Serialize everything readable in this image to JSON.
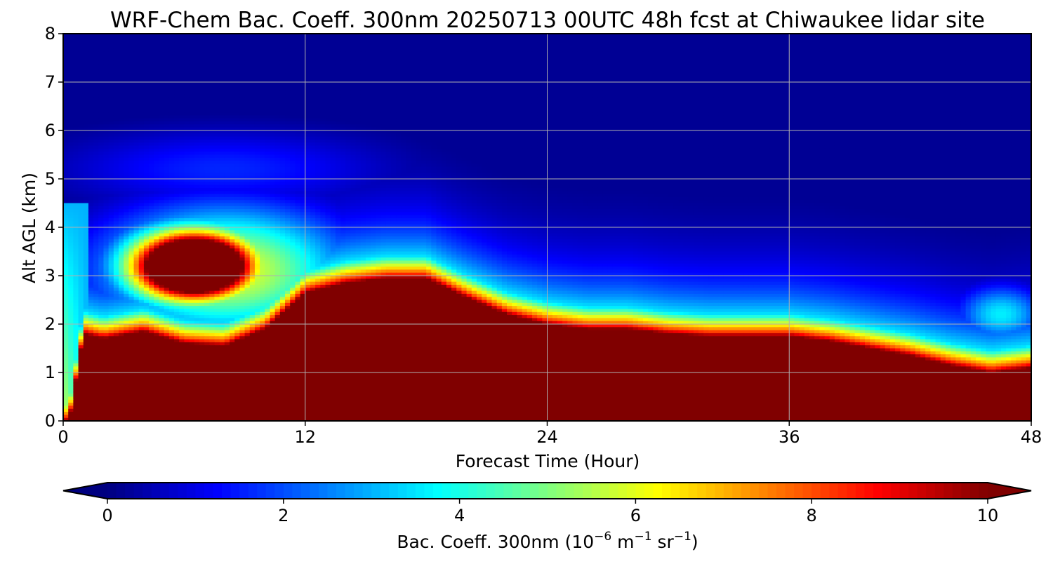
{
  "chart_data": {
    "type": "heatmap",
    "title": "WRF-Chem Bac. Coeff. 300nm  20250713 00UTC 48h fcst at Chiwaukee lidar site",
    "xlabel": "Forecast Time (Hour)",
    "ylabel": "Alt AGL (km)",
    "xlim": [
      0,
      48
    ],
    "ylim": [
      0,
      8
    ],
    "xticks": [
      0,
      12,
      24,
      36,
      48
    ],
    "yticks": [
      0,
      1,
      2,
      3,
      4,
      5,
      6,
      7,
      8
    ],
    "grid": true,
    "colormap": "jet",
    "colorbar": {
      "orientation": "horizontal",
      "location": "bottom",
      "label_prefix": "Bac. Coeff. 300nm  (10",
      "label_exp1": "−6",
      "label_mid": " m",
      "label_exp2": "−1",
      "label_mid2": " sr",
      "label_exp3": "−1",
      "label_suffix": ")",
      "range": [
        0,
        10
      ],
      "ticks": [
        0,
        2,
        4,
        6,
        8,
        10
      ],
      "extend": "both"
    },
    "features": {
      "saturated_layer_top_km": {
        "x": [
          0.3,
          1,
          2,
          4,
          6,
          8,
          10,
          12,
          14,
          16,
          18,
          20,
          22,
          24,
          26,
          28,
          30,
          32,
          34,
          36,
          38,
          40,
          42,
          44,
          46,
          48
        ],
        "y": [
          0,
          1.8,
          1.7,
          1.85,
          1.6,
          1.55,
          1.9,
          2.65,
          2.85,
          2.95,
          2.95,
          2.55,
          2.2,
          2.0,
          1.9,
          1.9,
          1.8,
          1.75,
          1.75,
          1.75,
          1.65,
          1.5,
          1.35,
          1.15,
          1.0,
          1.1
        ]
      },
      "elevated_plume": {
        "center_hours": 6.5,
        "center_km": 3.2,
        "peak_value": 10
      },
      "upper_background_value": 0.2
    }
  }
}
